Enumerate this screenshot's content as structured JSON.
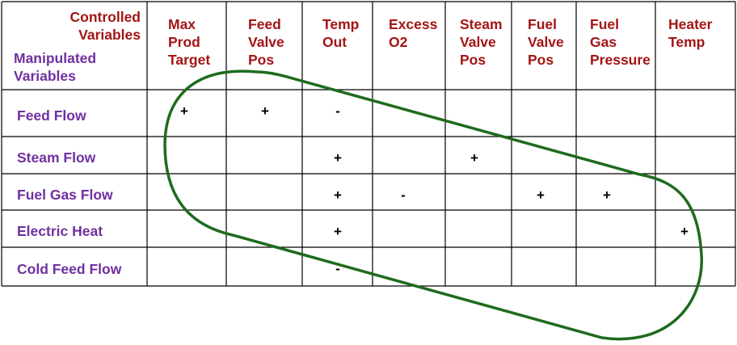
{
  "corner": {
    "controlled_label": [
      "Controlled",
      "Variables"
    ],
    "manipulated_label": [
      "Manipulated",
      "Variables"
    ]
  },
  "columns": [
    {
      "id": "max-prod-target",
      "lines": [
        "Max",
        "Prod",
        "Target"
      ]
    },
    {
      "id": "feed-valve-pos",
      "lines": [
        "Feed",
        "Valve",
        "Pos"
      ]
    },
    {
      "id": "temp-out",
      "lines": [
        "Temp",
        "Out"
      ]
    },
    {
      "id": "excess-o2",
      "lines": [
        "Excess",
        "O2"
      ]
    },
    {
      "id": "steam-valve-pos",
      "lines": [
        "Steam",
        "Valve",
        "Pos"
      ]
    },
    {
      "id": "fuel-valve-pos",
      "lines": [
        "Fuel",
        "Valve",
        "Pos"
      ]
    },
    {
      "id": "fuel-gas-pressure",
      "lines": [
        "Fuel",
        "Gas",
        "Pressure"
      ]
    },
    {
      "id": "heater-temp",
      "lines": [
        "Heater",
        "Temp"
      ]
    }
  ],
  "rows": [
    {
      "id": "feed-flow",
      "label": "Feed Flow",
      "cells": [
        "+",
        "+",
        "-",
        "",
        "",
        "",
        "",
        ""
      ]
    },
    {
      "id": "steam-flow",
      "label": "Steam Flow",
      "cells": [
        "",
        "",
        "+",
        "",
        "+",
        "",
        "",
        ""
      ]
    },
    {
      "id": "fuel-gas-flow",
      "label": "Fuel Gas Flow",
      "cells": [
        "",
        "",
        "+",
        "-",
        "",
        "+",
        "+",
        ""
      ]
    },
    {
      "id": "electric-heat",
      "label": "Electric Heat",
      "cells": [
        "",
        "",
        "+",
        "",
        "",
        "",
        "",
        "+"
      ]
    },
    {
      "id": "cold-feed-flow",
      "label": "Cold Feed Flow",
      "cells": [
        "",
        "",
        "-",
        "",
        "",
        "",
        "",
        ""
      ]
    }
  ],
  "colors": {
    "grid": "#000000",
    "header_text": "#a31515",
    "row_text": "#7030a0",
    "loop": "#1e6b1e"
  }
}
